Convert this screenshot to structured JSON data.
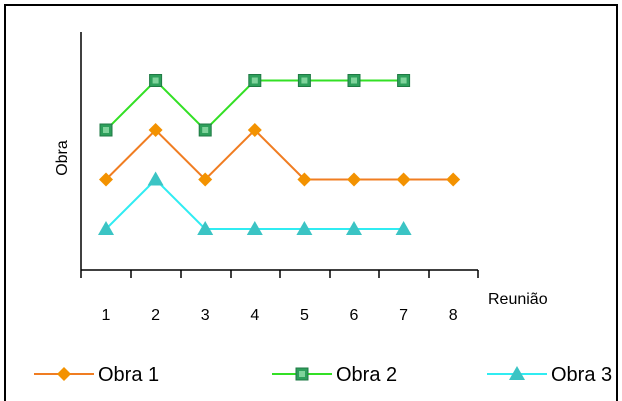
{
  "chart_data": {
    "type": "line",
    "title": "",
    "xlabel": "Reunião",
    "ylabel": "Obra",
    "x_ticks": [
      "1",
      "2",
      "3",
      "4",
      "5",
      "6",
      "7",
      "8"
    ],
    "y_axis_labels_shown": false,
    "grid": false,
    "legend_position": "bottom",
    "series": [
      {
        "name": "Obra 1",
        "color": "#f39200",
        "marker": "diamond",
        "line_color": "#f07d22",
        "x": [
          1,
          2,
          3,
          4,
          5,
          6,
          7,
          8
        ],
        "y": [
          2,
          3,
          2,
          3,
          2,
          2,
          2,
          2
        ]
      },
      {
        "name": "Obra 2",
        "color": "#2e9f5b",
        "marker": "square",
        "line_color": "#33e025",
        "x": [
          1,
          2,
          3,
          4,
          5,
          6,
          7
        ],
        "y": [
          3,
          4,
          3,
          4,
          4,
          4,
          4
        ]
      },
      {
        "name": "Obra 3",
        "color": "#3bc4c4",
        "marker": "triangle",
        "line_color": "#30ecf2",
        "x": [
          1,
          2,
          3,
          4,
          5,
          6,
          7
        ],
        "y": [
          1,
          2,
          1,
          1,
          1,
          1,
          1
        ]
      }
    ]
  }
}
